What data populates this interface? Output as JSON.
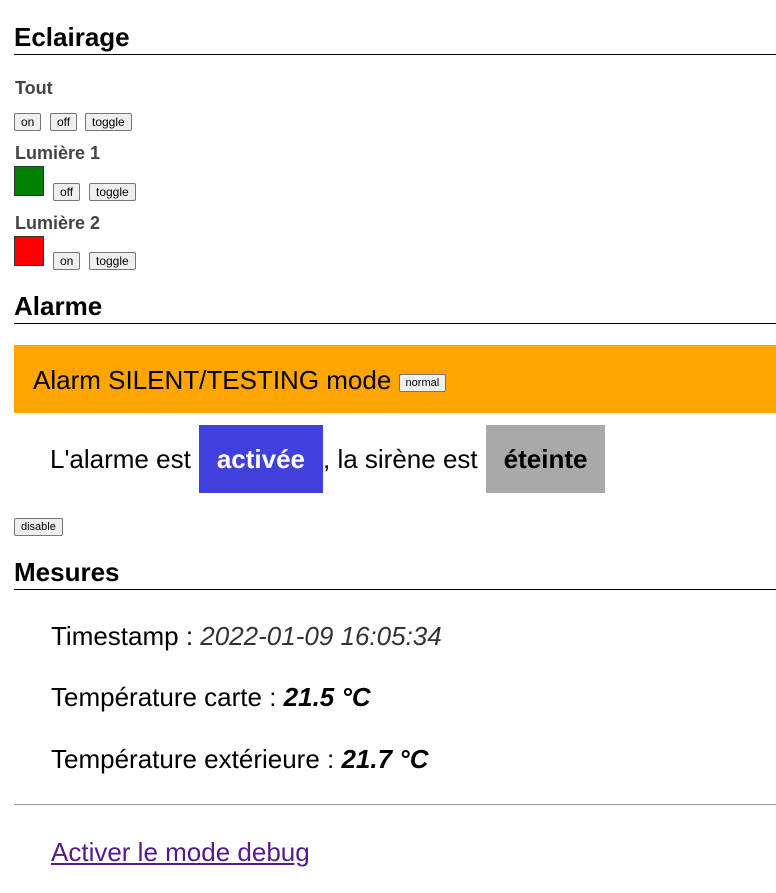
{
  "eclairage": {
    "title": "Eclairage",
    "tout": {
      "label": "Tout",
      "buttons": {
        "on": "on",
        "off": "off",
        "toggle": "toggle"
      }
    },
    "lumiere1": {
      "label": "Lumière 1",
      "state_color": "#008000",
      "buttons": {
        "off": "off",
        "toggle": "toggle"
      }
    },
    "lumiere2": {
      "label": "Lumière 2",
      "state_color": "#ff0000",
      "buttons": {
        "on": "on",
        "toggle": "toggle"
      }
    }
  },
  "alarme": {
    "title": "Alarme",
    "banner": {
      "text": "Alarm SILENT/TESTING mode",
      "color": "#ffa500",
      "button": "normal"
    },
    "status": {
      "prefix": "L'alarme est",
      "alarm_state": "activée",
      "alarm_state_color": "#4040dd",
      "middle": ", la sirène est",
      "siren_state": "éteinte",
      "siren_state_color": "#a9a9a9"
    },
    "disable_button": "disable"
  },
  "mesures": {
    "title": "Mesures",
    "timestamp": {
      "label": "Timestamp : ",
      "value": "2022-01-09 16:05:34"
    },
    "temp_carte": {
      "label": "Température carte : ",
      "value": "21.5 °C"
    },
    "temp_ext": {
      "label": "Température extérieure : ",
      "value": "21.7 °C"
    }
  },
  "debug_link": "Activer le mode debug"
}
